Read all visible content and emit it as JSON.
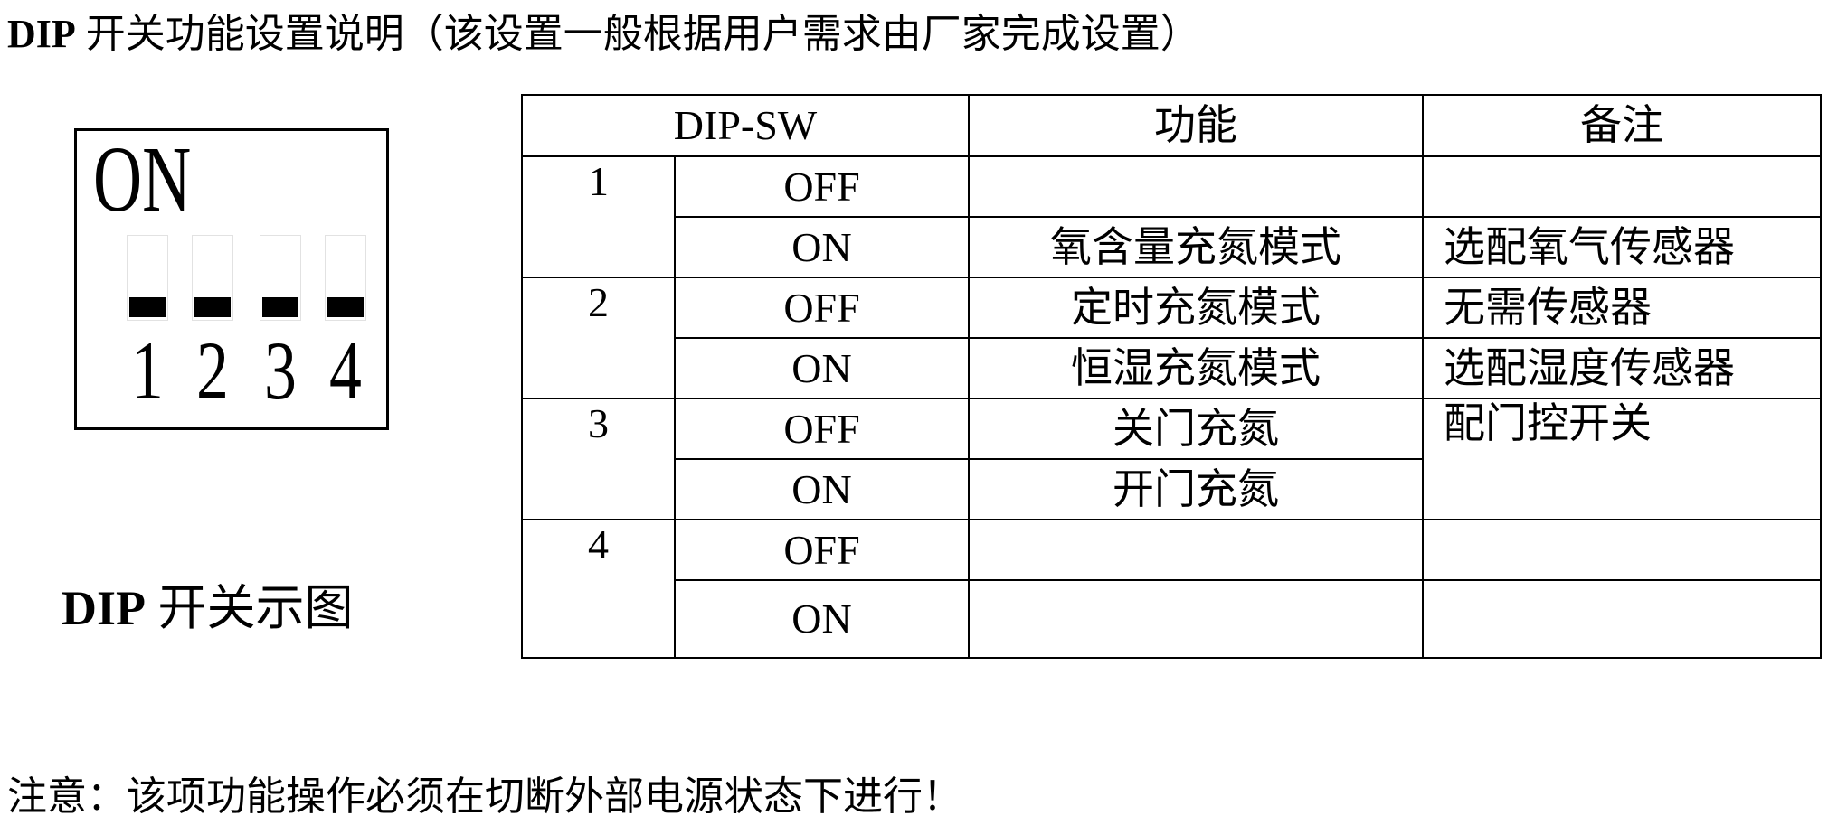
{
  "title": {
    "prefix": "DIP",
    "text": " 开关功能设置说明（该设置一般根据用户需求由厂家完成设置）"
  },
  "diagram": {
    "on_label": "ON",
    "switches": [
      {
        "number": "1",
        "position": "OFF"
      },
      {
        "number": "2",
        "position": "OFF"
      },
      {
        "number": "3",
        "position": "OFF"
      },
      {
        "number": "4",
        "position": "OFF"
      }
    ],
    "caption_prefix": "DIP",
    "caption_text": " 开关示图"
  },
  "table": {
    "headers": [
      "DIP-SW",
      "功能",
      "备注"
    ],
    "rows": [
      {
        "switch": "1",
        "state": "OFF",
        "function": "",
        "note": ""
      },
      {
        "switch": "",
        "state": "ON",
        "function": "氧含量充氮模式",
        "note": "选配氧气传感器"
      },
      {
        "switch": "2",
        "state": "OFF",
        "function": "定时充氮模式",
        "note": "无需传感器"
      },
      {
        "switch": "",
        "state": "ON",
        "function": "恒湿充氮模式",
        "note": "选配湿度传感器"
      },
      {
        "switch": "3",
        "state": "OFF",
        "function": "关门充氮",
        "note": "配门控开关"
      },
      {
        "switch": "",
        "state": "ON",
        "function": "开门充氮",
        "note": ""
      },
      {
        "switch": "4",
        "state": "OFF",
        "function": "",
        "note": ""
      },
      {
        "switch": "",
        "state": "ON",
        "function": "",
        "note": ""
      }
    ]
  },
  "notice": "注意：该项功能操作必须在切断外部电源状态下进行！"
}
